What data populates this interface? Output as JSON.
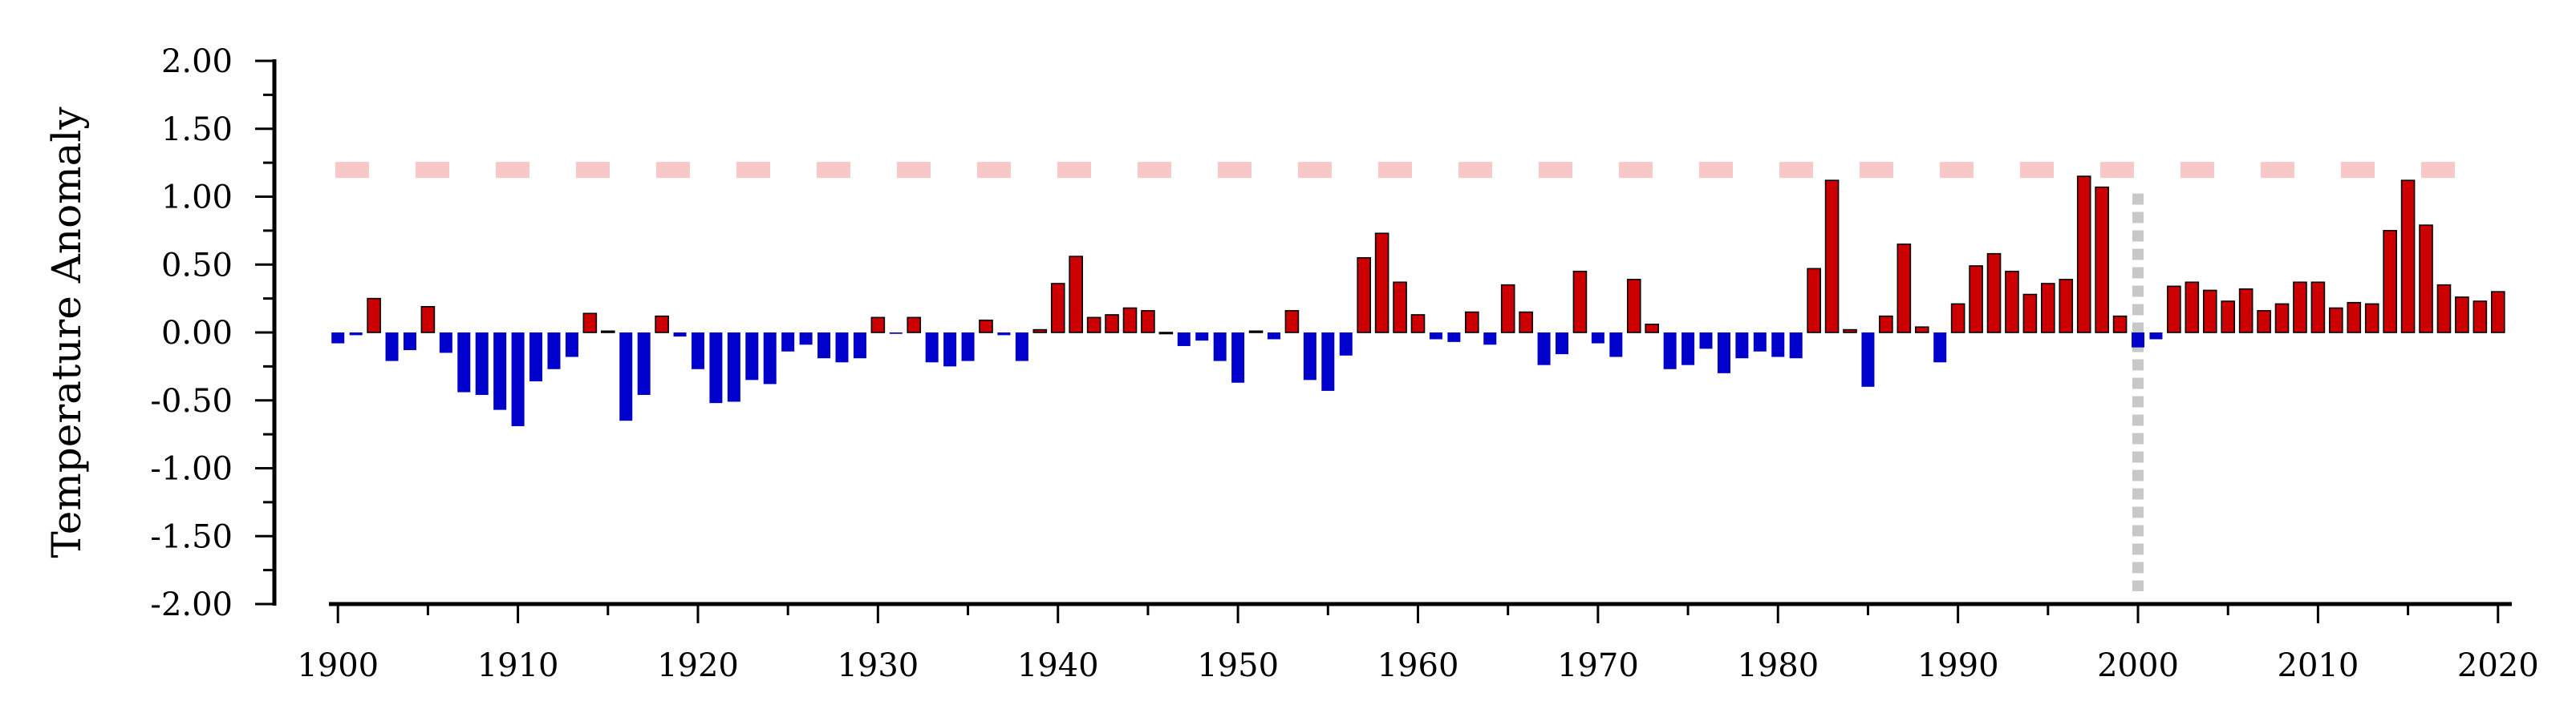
{
  "chart_data": {
    "type": "bar",
    "title": "",
    "xlabel": "",
    "ylabel": "Temperature Anomaly",
    "ylim": [
      -2.0,
      2.0
    ],
    "xlim": [
      1899.5,
      2020.5
    ],
    "yticks": [
      "2.00",
      "1.50",
      "1.00",
      "0.50",
      "0.00",
      "-0.50",
      "-1.00",
      "-1.50",
      "-2.00"
    ],
    "xticks": [
      "1900",
      "1910",
      "1920",
      "1930",
      "1940",
      "1950",
      "1960",
      "1970",
      "1980",
      "1990",
      "2000",
      "2010",
      "2020"
    ],
    "grid": false,
    "x": [
      1900,
      1901,
      1902,
      1903,
      1904,
      1905,
      1906,
      1907,
      1908,
      1909,
      1910,
      1911,
      1912,
      1913,
      1914,
      1915,
      1916,
      1917,
      1918,
      1919,
      1920,
      1921,
      1922,
      1923,
      1924,
      1925,
      1926,
      1927,
      1928,
      1929,
      1930,
      1931,
      1932,
      1933,
      1934,
      1935,
      1936,
      1937,
      1938,
      1939,
      1940,
      1941,
      1942,
      1943,
      1944,
      1945,
      1946,
      1947,
      1948,
      1949,
      1950,
      1951,
      1952,
      1953,
      1954,
      1955,
      1956,
      1957,
      1958,
      1959,
      1960,
      1961,
      1962,
      1963,
      1964,
      1965,
      1966,
      1967,
      1968,
      1969,
      1970,
      1971,
      1972,
      1973,
      1974,
      1975,
      1976,
      1977,
      1978,
      1979,
      1980,
      1981,
      1982,
      1983,
      1984,
      1985,
      1986,
      1987,
      1988,
      1989,
      1990,
      1991,
      1992,
      1993,
      1994,
      1995,
      1996,
      1997,
      1998,
      1999,
      2000,
      2001,
      2002,
      2003,
      2004,
      2005,
      2006,
      2007,
      2008,
      2009,
      2010,
      2011,
      2012,
      2013,
      2014,
      2015,
      2016,
      2017,
      2018,
      2019,
      2020
    ],
    "values": [
      -0.08,
      -0.02,
      0.25,
      -0.21,
      -0.13,
      0.19,
      -0.15,
      -0.44,
      -0.46,
      -0.57,
      -0.69,
      -0.36,
      -0.27,
      -0.18,
      0.14,
      0.01,
      -0.65,
      -0.46,
      0.12,
      -0.03,
      -0.27,
      -0.52,
      -0.51,
      -0.35,
      -0.38,
      -0.14,
      -0.09,
      -0.19,
      -0.22,
      -0.19,
      0.11,
      -0.01,
      0.11,
      -0.22,
      -0.25,
      -0.21,
      0.09,
      -0.02,
      -0.21,
      0.02,
      0.36,
      0.56,
      0.11,
      0.13,
      0.18,
      0.16,
      0.0,
      -0.1,
      -0.06,
      -0.21,
      -0.37,
      0.01,
      -0.05,
      0.16,
      -0.35,
      -0.43,
      -0.17,
      0.55,
      0.73,
      0.37,
      0.13,
      -0.05,
      -0.07,
      0.15,
      -0.09,
      0.35,
      0.15,
      -0.24,
      -0.16,
      0.45,
      -0.08,
      -0.18,
      0.39,
      0.06,
      -0.27,
      -0.24,
      -0.12,
      -0.3,
      -0.19,
      -0.14,
      -0.18,
      -0.19,
      0.47,
      1.12,
      0.02,
      -0.4,
      0.12,
      0.65,
      0.04,
      -0.22,
      0.21,
      0.49,
      0.58,
      0.45,
      0.28,
      0.36,
      0.39,
      1.15,
      1.07,
      0.12,
      -0.11,
      -0.05,
      0.34,
      0.37,
      0.31,
      0.23,
      0.32,
      0.16,
      0.21,
      0.37,
      0.37,
      0.18,
      0.22,
      0.21,
      0.75,
      1.12,
      0.79,
      0.35,
      0.26,
      0.23,
      0.3
    ],
    "threshold_line": {
      "value": 1.15,
      "style": "dashed",
      "color": "#f8c8c8"
    },
    "vertical_marker": {
      "x": 2000,
      "style": "dotted",
      "color": "#c8c8c8"
    },
    "colors": {
      "positive": "#cc0000",
      "negative": "#0000cc",
      "positive_edge": "#000000"
    }
  }
}
